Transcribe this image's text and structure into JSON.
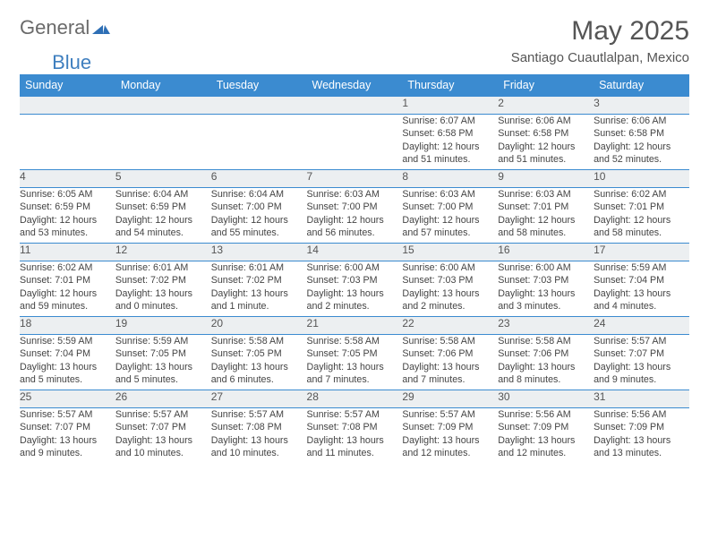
{
  "logo": {
    "general": "General",
    "blue": "Blue"
  },
  "title": "May 2025",
  "subtitle": "Santiago Cuautlalpan, Mexico",
  "colors": {
    "header_bg": "#3b8bd0",
    "header_fg": "#ffffff",
    "daynum_bg": "#eceff1",
    "border": "#3b8bd0",
    "text": "#444444",
    "title": "#555555"
  },
  "weekdays": [
    "Sunday",
    "Monday",
    "Tuesday",
    "Wednesday",
    "Thursday",
    "Friday",
    "Saturday"
  ],
  "weeks": [
    [
      {
        "n": "",
        "l": [
          "",
          "",
          "",
          ""
        ]
      },
      {
        "n": "",
        "l": [
          "",
          "",
          "",
          ""
        ]
      },
      {
        "n": "",
        "l": [
          "",
          "",
          "",
          ""
        ]
      },
      {
        "n": "",
        "l": [
          "",
          "",
          "",
          ""
        ]
      },
      {
        "n": "1",
        "l": [
          "Sunrise: 6:07 AM",
          "Sunset: 6:58 PM",
          "Daylight: 12 hours",
          "and 51 minutes."
        ]
      },
      {
        "n": "2",
        "l": [
          "Sunrise: 6:06 AM",
          "Sunset: 6:58 PM",
          "Daylight: 12 hours",
          "and 51 minutes."
        ]
      },
      {
        "n": "3",
        "l": [
          "Sunrise: 6:06 AM",
          "Sunset: 6:58 PM",
          "Daylight: 12 hours",
          "and 52 minutes."
        ]
      }
    ],
    [
      {
        "n": "4",
        "l": [
          "Sunrise: 6:05 AM",
          "Sunset: 6:59 PM",
          "Daylight: 12 hours",
          "and 53 minutes."
        ]
      },
      {
        "n": "5",
        "l": [
          "Sunrise: 6:04 AM",
          "Sunset: 6:59 PM",
          "Daylight: 12 hours",
          "and 54 minutes."
        ]
      },
      {
        "n": "6",
        "l": [
          "Sunrise: 6:04 AM",
          "Sunset: 7:00 PM",
          "Daylight: 12 hours",
          "and 55 minutes."
        ]
      },
      {
        "n": "7",
        "l": [
          "Sunrise: 6:03 AM",
          "Sunset: 7:00 PM",
          "Daylight: 12 hours",
          "and 56 minutes."
        ]
      },
      {
        "n": "8",
        "l": [
          "Sunrise: 6:03 AM",
          "Sunset: 7:00 PM",
          "Daylight: 12 hours",
          "and 57 minutes."
        ]
      },
      {
        "n": "9",
        "l": [
          "Sunrise: 6:03 AM",
          "Sunset: 7:01 PM",
          "Daylight: 12 hours",
          "and 58 minutes."
        ]
      },
      {
        "n": "10",
        "l": [
          "Sunrise: 6:02 AM",
          "Sunset: 7:01 PM",
          "Daylight: 12 hours",
          "and 58 minutes."
        ]
      }
    ],
    [
      {
        "n": "11",
        "l": [
          "Sunrise: 6:02 AM",
          "Sunset: 7:01 PM",
          "Daylight: 12 hours",
          "and 59 minutes."
        ]
      },
      {
        "n": "12",
        "l": [
          "Sunrise: 6:01 AM",
          "Sunset: 7:02 PM",
          "Daylight: 13 hours",
          "and 0 minutes."
        ]
      },
      {
        "n": "13",
        "l": [
          "Sunrise: 6:01 AM",
          "Sunset: 7:02 PM",
          "Daylight: 13 hours",
          "and 1 minute."
        ]
      },
      {
        "n": "14",
        "l": [
          "Sunrise: 6:00 AM",
          "Sunset: 7:03 PM",
          "Daylight: 13 hours",
          "and 2 minutes."
        ]
      },
      {
        "n": "15",
        "l": [
          "Sunrise: 6:00 AM",
          "Sunset: 7:03 PM",
          "Daylight: 13 hours",
          "and 2 minutes."
        ]
      },
      {
        "n": "16",
        "l": [
          "Sunrise: 6:00 AM",
          "Sunset: 7:03 PM",
          "Daylight: 13 hours",
          "and 3 minutes."
        ]
      },
      {
        "n": "17",
        "l": [
          "Sunrise: 5:59 AM",
          "Sunset: 7:04 PM",
          "Daylight: 13 hours",
          "and 4 minutes."
        ]
      }
    ],
    [
      {
        "n": "18",
        "l": [
          "Sunrise: 5:59 AM",
          "Sunset: 7:04 PM",
          "Daylight: 13 hours",
          "and 5 minutes."
        ]
      },
      {
        "n": "19",
        "l": [
          "Sunrise: 5:59 AM",
          "Sunset: 7:05 PM",
          "Daylight: 13 hours",
          "and 5 minutes."
        ]
      },
      {
        "n": "20",
        "l": [
          "Sunrise: 5:58 AM",
          "Sunset: 7:05 PM",
          "Daylight: 13 hours",
          "and 6 minutes."
        ]
      },
      {
        "n": "21",
        "l": [
          "Sunrise: 5:58 AM",
          "Sunset: 7:05 PM",
          "Daylight: 13 hours",
          "and 7 minutes."
        ]
      },
      {
        "n": "22",
        "l": [
          "Sunrise: 5:58 AM",
          "Sunset: 7:06 PM",
          "Daylight: 13 hours",
          "and 7 minutes."
        ]
      },
      {
        "n": "23",
        "l": [
          "Sunrise: 5:58 AM",
          "Sunset: 7:06 PM",
          "Daylight: 13 hours",
          "and 8 minutes."
        ]
      },
      {
        "n": "24",
        "l": [
          "Sunrise: 5:57 AM",
          "Sunset: 7:07 PM",
          "Daylight: 13 hours",
          "and 9 minutes."
        ]
      }
    ],
    [
      {
        "n": "25",
        "l": [
          "Sunrise: 5:57 AM",
          "Sunset: 7:07 PM",
          "Daylight: 13 hours",
          "and 9 minutes."
        ]
      },
      {
        "n": "26",
        "l": [
          "Sunrise: 5:57 AM",
          "Sunset: 7:07 PM",
          "Daylight: 13 hours",
          "and 10 minutes."
        ]
      },
      {
        "n": "27",
        "l": [
          "Sunrise: 5:57 AM",
          "Sunset: 7:08 PM",
          "Daylight: 13 hours",
          "and 10 minutes."
        ]
      },
      {
        "n": "28",
        "l": [
          "Sunrise: 5:57 AM",
          "Sunset: 7:08 PM",
          "Daylight: 13 hours",
          "and 11 minutes."
        ]
      },
      {
        "n": "29",
        "l": [
          "Sunrise: 5:57 AM",
          "Sunset: 7:09 PM",
          "Daylight: 13 hours",
          "and 12 minutes."
        ]
      },
      {
        "n": "30",
        "l": [
          "Sunrise: 5:56 AM",
          "Sunset: 7:09 PM",
          "Daylight: 13 hours",
          "and 12 minutes."
        ]
      },
      {
        "n": "31",
        "l": [
          "Sunrise: 5:56 AM",
          "Sunset: 7:09 PM",
          "Daylight: 13 hours",
          "and 13 minutes."
        ]
      }
    ]
  ]
}
